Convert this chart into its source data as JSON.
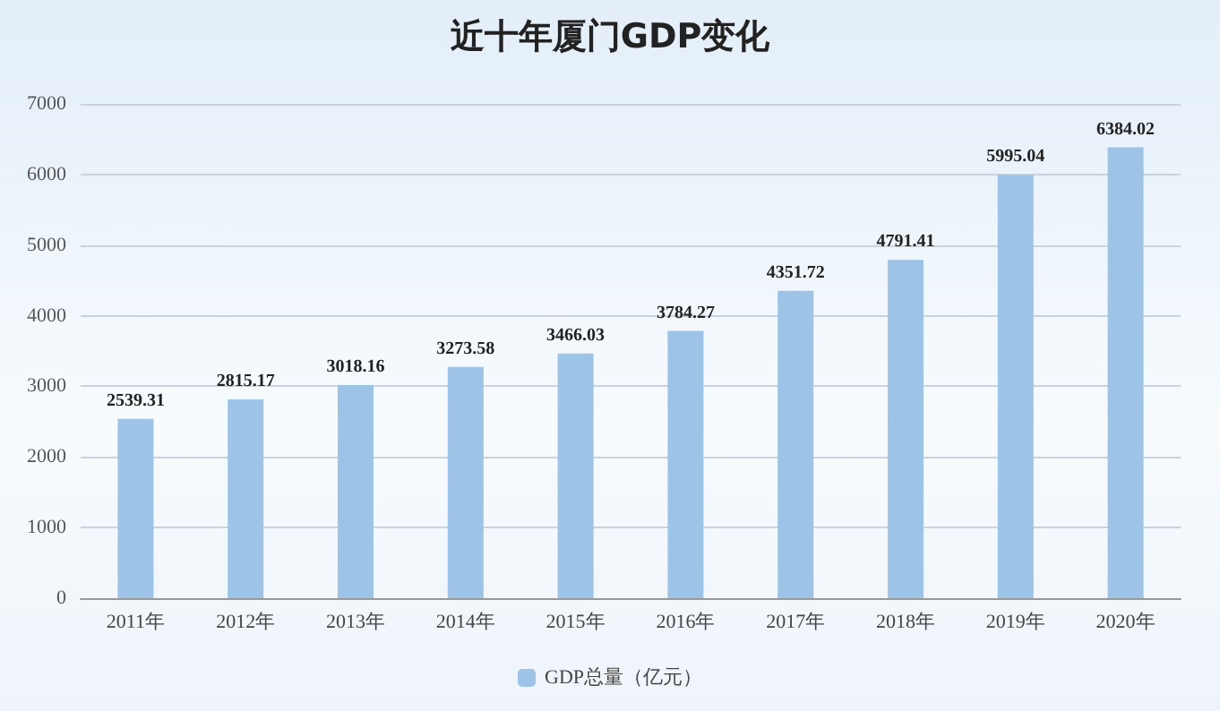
{
  "chart_data": {
    "type": "bar",
    "title": "近十年厦门GDP变化",
    "categories": [
      "2011年",
      "2012年",
      "2013年",
      "2014年",
      "2015年",
      "2016年",
      "2017年",
      "2018年",
      "2019年",
      "2020年"
    ],
    "series": [
      {
        "name": "GDP总量（亿元）",
        "color": "#9dc3e6",
        "values": [
          2539.31,
          2815.17,
          3018.16,
          3273.58,
          3466.03,
          3784.27,
          4351.72,
          4791.41,
          5995.04,
          6384.02
        ]
      }
    ],
    "ylim": [
      0,
      7000
    ],
    "yticks": [
      0,
      1000,
      2000,
      3000,
      4000,
      5000,
      6000,
      7000
    ],
    "grid": "y",
    "legend": "bottom",
    "data_labels": true
  }
}
